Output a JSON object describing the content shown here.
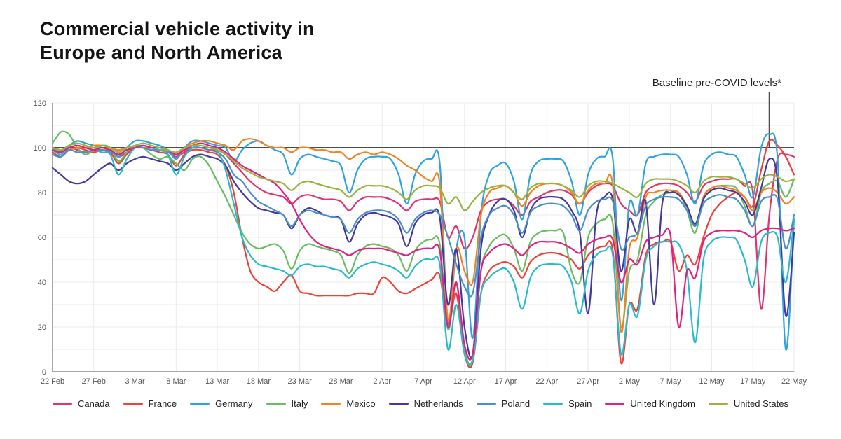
{
  "header": {
    "title_line1": "Commercial vehicle activity in",
    "title_line2": "Europe and North America"
  },
  "annotation": {
    "label": "Baseline pre-COVID levels*"
  },
  "chart_data": {
    "type": "line",
    "title": "Commercial vehicle activity in Europe and North America",
    "xlabel": "",
    "ylabel": "",
    "x_unit": "daily values, day 0 = 22 Feb, day 90 = 22 May",
    "days_span": 90,
    "x_tick_labels": [
      "22 Feb",
      "27 Feb",
      "3 Mar",
      "8 Mar",
      "13 Mar",
      "18 Mar",
      "23 Mar",
      "28 Mar",
      "2 Apr",
      "7 Apr",
      "12 Apr",
      "17 Apr",
      "22 Apr",
      "27 Apr",
      "2 May",
      "7 May",
      "12 May",
      "17 May",
      "22 May"
    ],
    "y_ticks": [
      0,
      20,
      40,
      60,
      80,
      100,
      120
    ],
    "ylim": [
      0,
      120
    ],
    "grid": true,
    "legend_position": "bottom",
    "baseline_value": 100,
    "annotation_day": 87,
    "colors": {
      "axis_text": "#555555",
      "gridline": "#ebebeb",
      "axis_line": "#8a8a8a",
      "baseline_line": "#4d4d4d"
    },
    "series": [
      {
        "name": "Canada",
        "color": "#e4336b",
        "values": [
          99,
          98,
          100,
          99,
          98,
          99,
          100,
          99,
          96,
          98,
          100,
          100,
          99,
          99,
          98,
          96,
          98,
          100,
          100,
          99,
          99,
          97,
          93,
          89,
          85,
          82,
          80,
          79,
          78,
          75,
          78,
          79,
          78,
          77,
          77,
          76,
          72,
          76,
          78,
          78,
          78,
          77,
          75,
          72,
          76,
          77,
          77,
          76,
          60,
          65,
          55,
          60,
          72,
          76,
          77,
          77,
          74,
          70,
          76,
          78,
          80,
          81,
          81,
          79,
          75,
          80,
          83,
          84,
          83,
          75,
          72,
          70,
          80,
          83,
          84,
          84,
          83,
          80,
          76,
          83,
          85,
          86,
          86,
          86,
          83,
          80,
          28,
          70,
          95,
          97,
          96
        ]
      },
      {
        "name": "France",
        "color": "#ef4136",
        "values": [
          98,
          96,
          99,
          100,
          99,
          98,
          99,
          98,
          93,
          97,
          100,
          100,
          99,
          98,
          97,
          92,
          97,
          99,
          99,
          98,
          97,
          92,
          80,
          60,
          45,
          40,
          38,
          36,
          40,
          43,
          36,
          35,
          34,
          34,
          34,
          34,
          34,
          35,
          35,
          35,
          42,
          40,
          36,
          35,
          37,
          39,
          41,
          43,
          20,
          35,
          8,
          4,
          35,
          45,
          48,
          49,
          47,
          42,
          49,
          52,
          53,
          53,
          52,
          50,
          46,
          52,
          55,
          56,
          54,
          4,
          30,
          28,
          52,
          57,
          58,
          58,
          45,
          52,
          48,
          60,
          70,
          75,
          78,
          80,
          78,
          74,
          90,
          103,
          101,
          96,
          88
        ]
      },
      {
        "name": "Germany",
        "color": "#2fa3dc",
        "values": [
          100,
          98,
          101,
          103,
          102,
          101,
          100,
          99,
          96,
          100,
          103,
          103,
          102,
          101,
          99,
          95,
          100,
          103,
          103,
          102,
          101,
          100,
          94,
          99,
          102,
          103,
          101,
          99,
          97,
          88,
          95,
          97,
          96,
          95,
          94,
          92,
          80,
          90,
          95,
          96,
          96,
          95,
          88,
          75,
          88,
          94,
          95,
          93,
          22,
          55,
          60,
          15,
          70,
          88,
          92,
          93,
          85,
          68,
          88,
          94,
          95,
          95,
          94,
          85,
          70,
          88,
          95,
          96,
          95,
          32,
          75,
          70,
          93,
          96,
          97,
          97,
          96,
          88,
          75,
          92,
          97,
          98,
          97,
          96,
          88,
          78,
          100,
          106,
          95,
          10,
          68
        ]
      },
      {
        "name": "Italy",
        "color": "#67bd60",
        "values": [
          102,
          107,
          106,
          100,
          97,
          99,
          101,
          100,
          94,
          98,
          101,
          100,
          97,
          95,
          96,
          93,
          90,
          95,
          96,
          92,
          85,
          78,
          70,
          62,
          57,
          55,
          56,
          57,
          54,
          46,
          54,
          57,
          56,
          55,
          54,
          52,
          44,
          52,
          56,
          57,
          56,
          55,
          52,
          45,
          54,
          58,
          59,
          57,
          19,
          40,
          10,
          6,
          45,
          56,
          60,
          61,
          55,
          45,
          58,
          62,
          63,
          63,
          62,
          45,
          40,
          60,
          66,
          68,
          66,
          20,
          45,
          50,
          70,
          76,
          79,
          80,
          80,
          72,
          62,
          78,
          82,
          83,
          83,
          82,
          74,
          65,
          80,
          84,
          85,
          78,
          86
        ]
      },
      {
        "name": "Mexico",
        "color": "#f58220",
        "values": [
          100,
          99,
          99,
          100,
          100,
          101,
          101,
          100,
          99,
          100,
          100,
          100,
          100,
          99,
          99,
          97,
          100,
          102,
          103,
          103,
          102,
          101,
          99,
          103,
          104,
          103,
          101,
          100,
          100,
          98,
          100,
          100,
          99,
          99,
          98,
          98,
          95,
          97,
          98,
          97,
          98,
          97,
          95,
          92,
          90,
          87,
          85,
          84,
          23,
          55,
          45,
          40,
          70,
          80,
          82,
          83,
          80,
          74,
          80,
          83,
          84,
          84,
          83,
          80,
          75,
          81,
          84,
          84,
          83,
          18,
          55,
          60,
          78,
          80,
          81,
          81,
          80,
          74,
          65,
          78,
          82,
          83,
          82,
          81,
          78,
          72,
          80,
          82,
          80,
          75,
          78
        ]
      },
      {
        "name": "Netherlands",
        "color": "#45399f",
        "values": [
          91,
          88,
          85,
          84,
          85,
          88,
          91,
          93,
          90,
          93,
          95,
          96,
          95,
          94,
          93,
          90,
          93,
          96,
          97,
          96,
          95,
          92,
          85,
          80,
          76,
          73,
          72,
          71,
          70,
          64,
          70,
          73,
          72,
          70,
          69,
          68,
          58,
          66,
          70,
          71,
          70,
          69,
          66,
          56,
          66,
          70,
          71,
          69,
          30,
          55,
          20,
          8,
          55,
          70,
          76,
          77,
          72,
          60,
          72,
          77,
          78,
          78,
          77,
          72,
          62,
          26,
          70,
          78,
          77,
          45,
          68,
          62,
          76,
          30,
          75,
          80,
          79,
          74,
          66,
          77,
          81,
          82,
          81,
          80,
          76,
          70,
          82,
          95,
          85,
          25,
          62
        ]
      },
      {
        "name": "Poland",
        "color": "#4a8fc7",
        "values": [
          97,
          96,
          99,
          98,
          98,
          99,
          99,
          98,
          97,
          99,
          100,
          100,
          99,
          99,
          98,
          97,
          99,
          100,
          100,
          99,
          98,
          95,
          88,
          85,
          80,
          76,
          74,
          72,
          70,
          65,
          70,
          72,
          71,
          70,
          69,
          68,
          62,
          68,
          71,
          72,
          72,
          71,
          68,
          62,
          68,
          71,
          72,
          70,
          60,
          48,
          38,
          35,
          60,
          70,
          73,
          74,
          70,
          62,
          71,
          74,
          75,
          75,
          74,
          70,
          63,
          72,
          76,
          77,
          76,
          55,
          60,
          62,
          74,
          77,
          78,
          78,
          77,
          72,
          65,
          75,
          78,
          79,
          78,
          77,
          72,
          65,
          76,
          78,
          77,
          55,
          70
        ]
      },
      {
        "name": "Spain",
        "color": "#27bccb",
        "values": [
          99,
          97,
          100,
          101,
          100,
          99,
          98,
          97,
          88,
          95,
          100,
          101,
          100,
          99,
          97,
          88,
          96,
          100,
          101,
          100,
          99,
          90,
          75,
          60,
          52,
          48,
          47,
          46,
          45,
          43,
          47,
          48,
          47,
          47,
          46,
          45,
          42,
          46,
          48,
          49,
          48,
          47,
          45,
          42,
          47,
          50,
          50,
          48,
          10,
          30,
          8,
          5,
          35,
          42,
          45,
          46,
          40,
          28,
          42,
          47,
          48,
          48,
          47,
          40,
          26,
          45,
          52,
          54,
          52,
          8,
          30,
          25,
          50,
          56,
          58,
          58,
          57,
          45,
          13,
          50,
          58,
          60,
          60,
          59,
          50,
          38,
          58,
          62,
          60,
          40,
          68
        ]
      },
      {
        "name": "United Kingdom",
        "color": "#e51f82",
        "values": [
          99,
          98,
          100,
          101,
          100,
          99,
          100,
          99,
          97,
          99,
          100,
          101,
          100,
          100,
          99,
          97,
          99,
          101,
          102,
          101,
          100,
          98,
          95,
          92,
          90,
          88,
          86,
          84,
          80,
          75,
          68,
          62,
          58,
          56,
          55,
          54,
          52,
          54,
          55,
          55,
          55,
          54,
          53,
          52,
          54,
          55,
          55,
          54,
          20,
          40,
          12,
          8,
          45,
          53,
          56,
          57,
          55,
          52,
          56,
          58,
          58,
          58,
          57,
          55,
          53,
          57,
          59,
          60,
          59,
          40,
          50,
          48,
          58,
          60,
          61,
          61,
          20,
          45,
          42,
          58,
          62,
          63,
          63,
          63,
          62,
          60,
          63,
          64,
          64,
          63,
          64
        ]
      },
      {
        "name": "United States",
        "color": "#97b43f",
        "values": [
          100,
          99,
          101,
          102,
          101,
          100,
          101,
          100,
          98,
          100,
          101,
          102,
          101,
          100,
          99,
          98,
          100,
          101,
          101,
          100,
          99,
          97,
          94,
          91,
          89,
          87,
          86,
          85,
          84,
          81,
          84,
          85,
          84,
          83,
          82,
          81,
          78,
          81,
          83,
          83,
          83,
          82,
          80,
          77,
          81,
          83,
          83,
          82,
          75,
          78,
          72,
          76,
          80,
          82,
          83,
          83,
          80,
          77,
          82,
          84,
          84,
          84,
          83,
          81,
          78,
          83,
          85,
          85,
          84,
          82,
          80,
          78,
          84,
          86,
          86,
          86,
          85,
          83,
          80,
          85,
          87,
          87,
          87,
          86,
          84,
          82,
          86,
          88,
          87,
          85,
          86
        ]
      }
    ]
  }
}
